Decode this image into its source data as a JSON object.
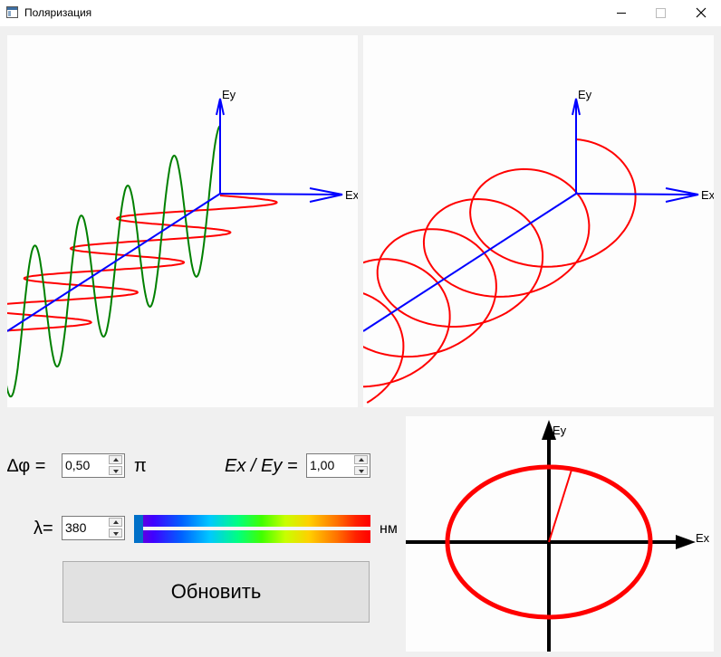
{
  "window": {
    "title": "Поляризация",
    "icon": "app-window-icon",
    "controls": [
      "minimize-icon",
      "maximize-icon",
      "close-icon"
    ]
  },
  "plot3d_left": {
    "axis_x": "Ex",
    "axis_y": "Ey"
  },
  "plot3d_right": {
    "axis_x": "Ex",
    "axis_y": "Ey"
  },
  "plot2d": {
    "axis_x": "Ex",
    "axis_y": "Ey"
  },
  "controls": {
    "delta_phi_label": "∆φ =",
    "delta_phi_value": "0,50",
    "delta_phi_unit": "π",
    "ratio_label": "Ex / Ey =",
    "ratio_value": "1,00",
    "lambda_label": "λ=",
    "lambda_value": "380",
    "lambda_unit": "нм",
    "lambda_slider_level": 0,
    "update_button": "Обновить"
  },
  "colors": {
    "axes": "#0000ff",
    "wave_x": "#ff0000",
    "wave_y": "#008000",
    "ellipse": "#ff0000",
    "axes_2d": "#000000"
  }
}
